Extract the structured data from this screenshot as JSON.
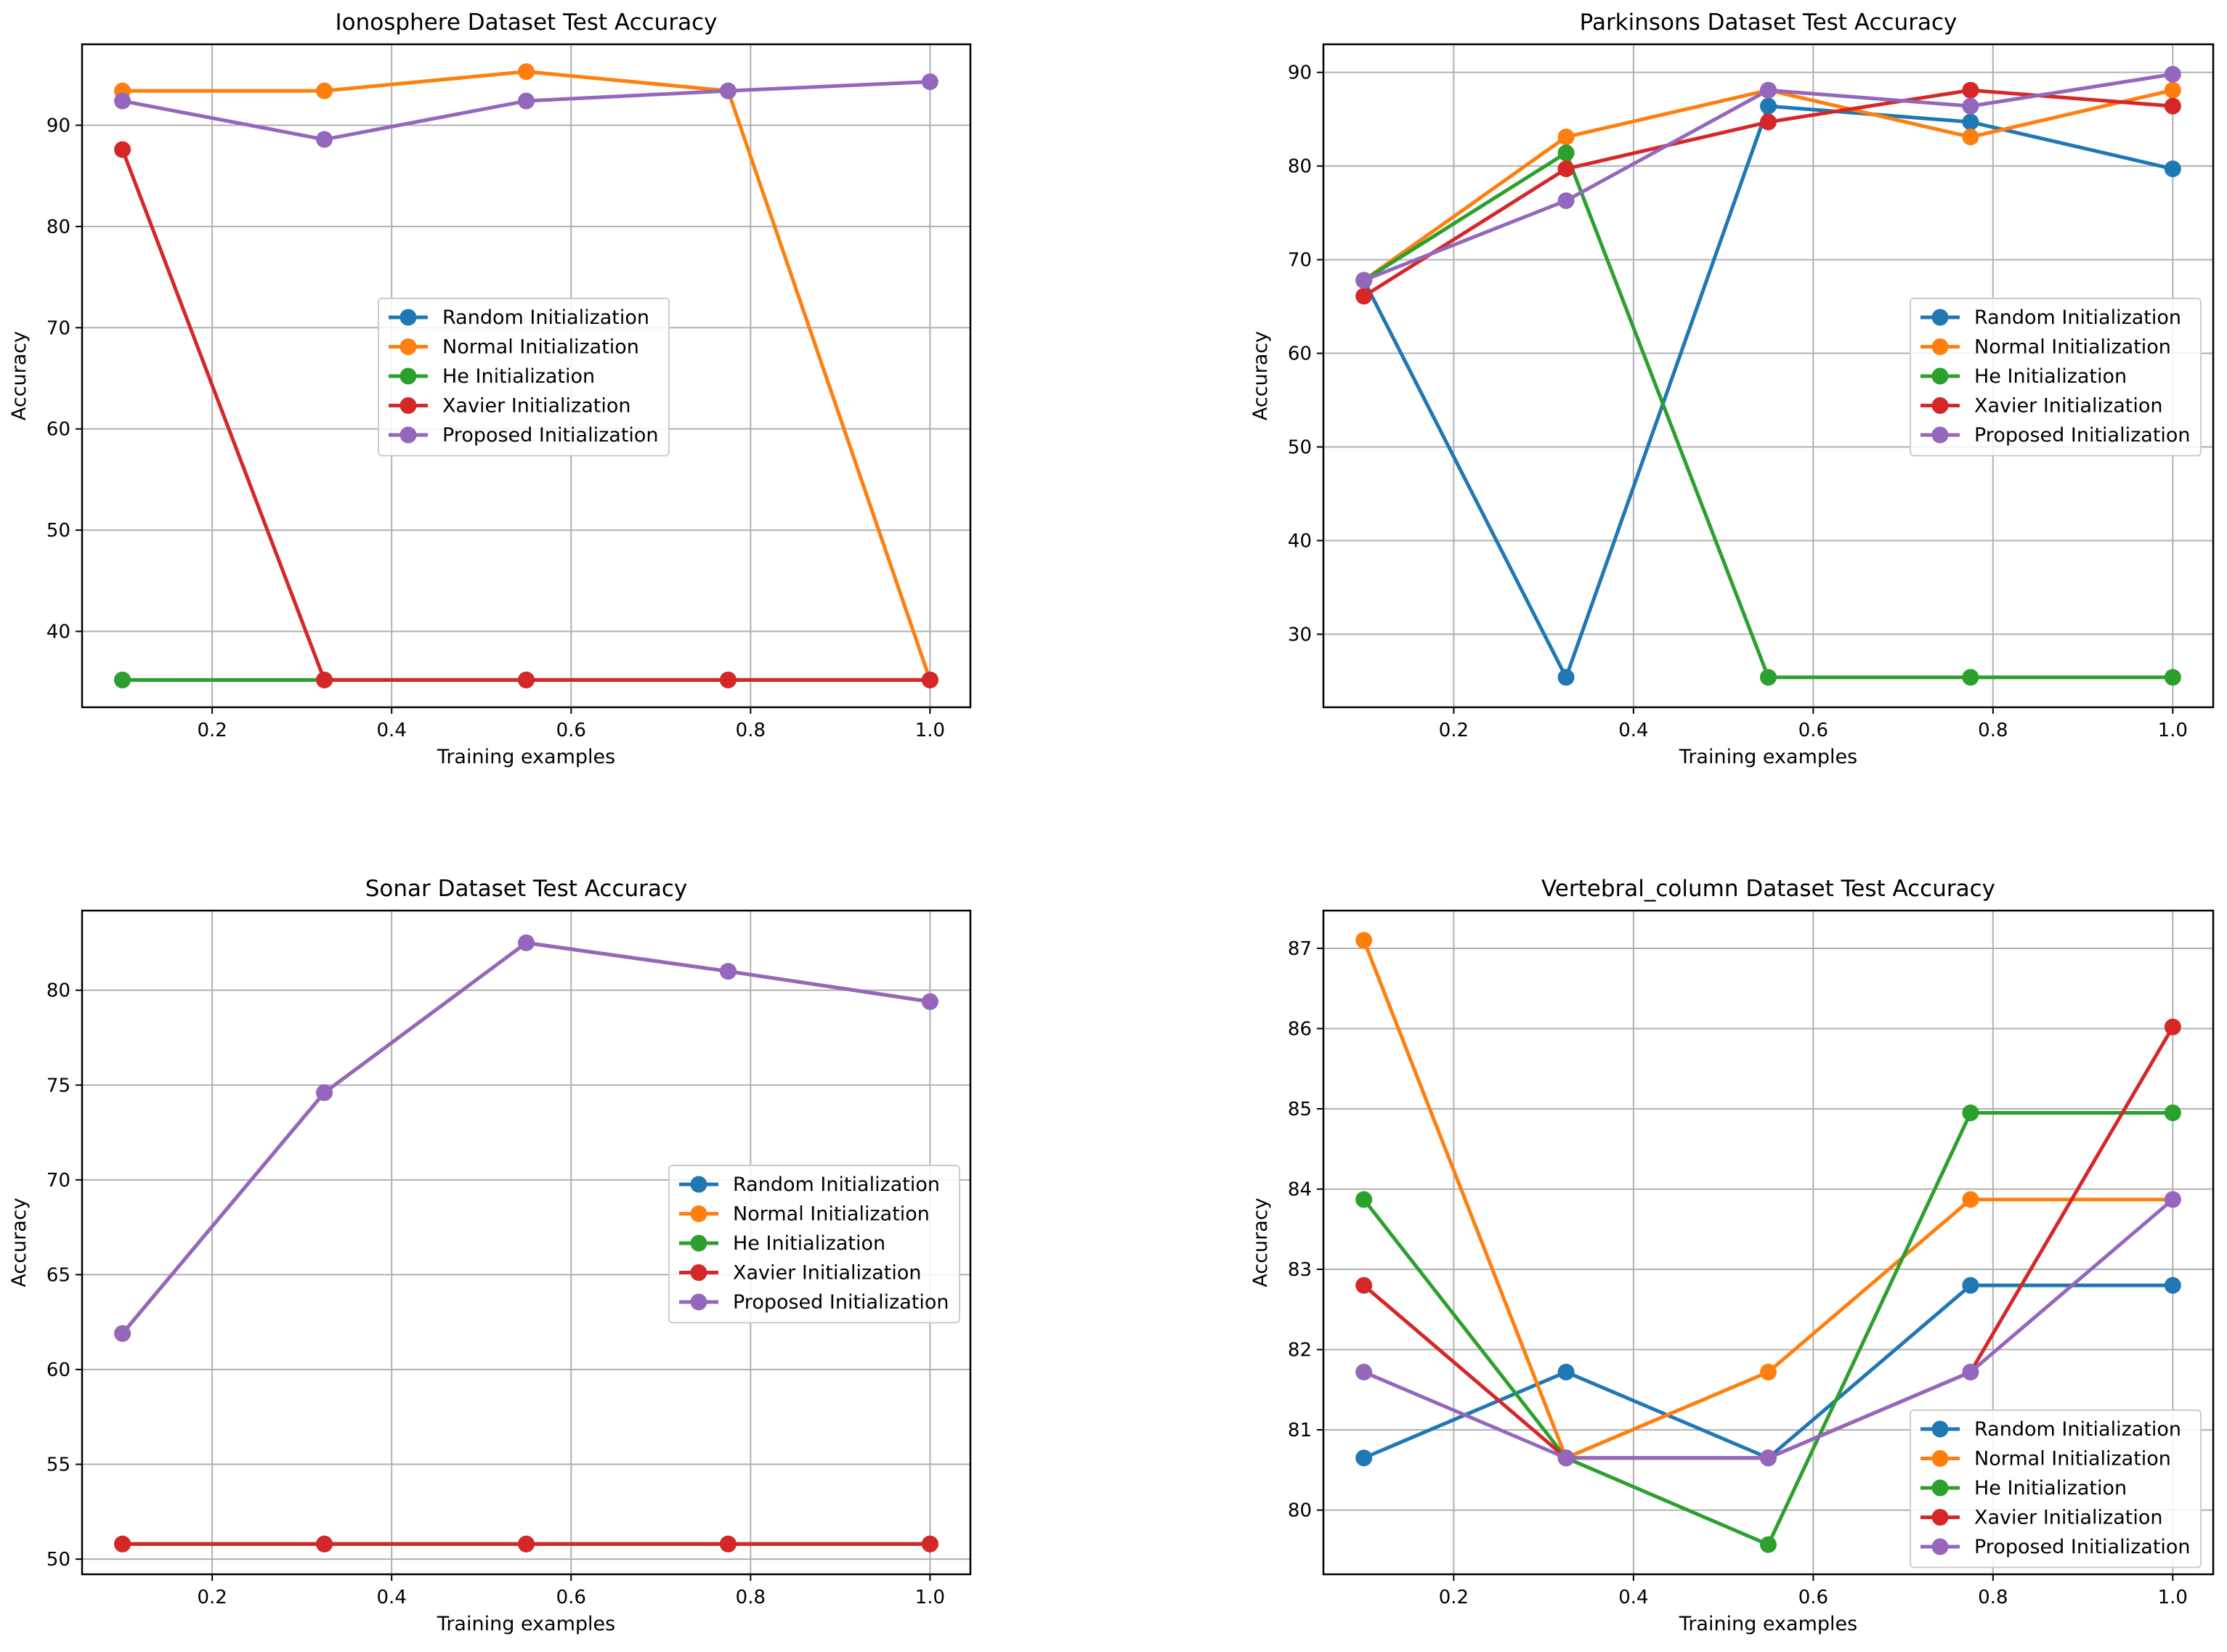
{
  "colors": {
    "random": "#1f77b4",
    "normal": "#ff7f0e",
    "he": "#2ca02c",
    "xavier": "#d62728",
    "proposed": "#9467bd",
    "grid": "#b0b0b0"
  },
  "chart_data": [
    {
      "type": "line",
      "title": "Ionosphere Dataset Test Accuracy",
      "xlabel": "Training examples",
      "ylabel": "Accuracy",
      "x": [
        0.1,
        0.325,
        0.55,
        0.775,
        1.0
      ],
      "xlim": [
        0.055,
        1.045
      ],
      "ylim": [
        32.5,
        98.0
      ],
      "xticks": [
        0.2,
        0.4,
        0.6,
        0.8,
        1.0
      ],
      "xtick_labels": [
        "0.2",
        "0.4",
        "0.6",
        "0.8",
        "1.0"
      ],
      "yticks": [
        40,
        50,
        60,
        70,
        80,
        90
      ],
      "ytick_labels": [
        "40",
        "50",
        "60",
        "70",
        "80",
        "90"
      ],
      "grid": true,
      "legend_position": "center",
      "series": [
        {
          "name": "Random Initialization",
          "color_key": "random",
          "values": [
            35.2,
            35.2,
            35.2,
            35.2,
            35.2
          ]
        },
        {
          "name": "Normal Initialization",
          "color_key": "normal",
          "values": [
            93.4,
            93.4,
            95.3,
            93.4,
            35.2
          ]
        },
        {
          "name": "He Initialization",
          "color_key": "he",
          "values": [
            35.2,
            35.2,
            35.2,
            35.2,
            35.2
          ]
        },
        {
          "name": "Xavier Initialization",
          "color_key": "xavier",
          "values": [
            87.6,
            35.2,
            35.2,
            35.2,
            35.2
          ]
        },
        {
          "name": "Proposed Initialization",
          "color_key": "proposed",
          "values": [
            92.4,
            88.6,
            92.4,
            93.4,
            94.3
          ]
        }
      ]
    },
    {
      "type": "line",
      "title": "Parkinsons Dataset Test Accuracy",
      "xlabel": "Training examples",
      "ylabel": "Accuracy",
      "x": [
        0.1,
        0.325,
        0.55,
        0.775,
        1.0
      ],
      "xlim": [
        0.055,
        1.045
      ],
      "ylim": [
        22.2,
        93.0
      ],
      "xticks": [
        0.2,
        0.4,
        0.6,
        0.8,
        1.0
      ],
      "xtick_labels": [
        "0.2",
        "0.4",
        "0.6",
        "0.8",
        "1.0"
      ],
      "yticks": [
        30,
        40,
        50,
        60,
        70,
        80,
        90
      ],
      "ytick_labels": [
        "30",
        "40",
        "50",
        "60",
        "70",
        "80",
        "90"
      ],
      "grid": true,
      "legend_position": "center-right",
      "series": [
        {
          "name": "Random Initialization",
          "color_key": "random",
          "values": [
            67.8,
            25.4,
            86.4,
            84.7,
            79.7
          ]
        },
        {
          "name": "Normal Initialization",
          "color_key": "normal",
          "values": [
            67.8,
            83.1,
            88.1,
            83.1,
            88.1
          ]
        },
        {
          "name": "He Initialization",
          "color_key": "he",
          "values": [
            67.8,
            81.4,
            25.4,
            25.4,
            25.4
          ]
        },
        {
          "name": "Xavier Initialization",
          "color_key": "xavier",
          "values": [
            66.1,
            79.7,
            84.7,
            88.1,
            86.4
          ]
        },
        {
          "name": "Proposed Initialization",
          "color_key": "proposed",
          "values": [
            67.8,
            76.3,
            88.1,
            86.4,
            89.8
          ]
        }
      ]
    },
    {
      "type": "line",
      "title": "Sonar Dataset Test Accuracy",
      "xlabel": "Training examples",
      "ylabel": "Accuracy",
      "x": [
        0.1,
        0.325,
        0.55,
        0.775,
        1.0
      ],
      "xlim": [
        0.055,
        1.045
      ],
      "ylim": [
        49.2,
        84.2
      ],
      "xticks": [
        0.2,
        0.4,
        0.6,
        0.8,
        1.0
      ],
      "xtick_labels": [
        "0.2",
        "0.4",
        "0.6",
        "0.8",
        "1.0"
      ],
      "yticks": [
        50,
        55,
        60,
        65,
        70,
        75,
        80
      ],
      "ytick_labels": [
        "50",
        "55",
        "60",
        "65",
        "70",
        "75",
        "80"
      ],
      "grid": true,
      "legend_position": "center-right",
      "series": [
        {
          "name": "Random Initialization",
          "color_key": "random",
          "values": [
            50.8,
            50.8,
            50.8,
            50.8,
            50.8
          ]
        },
        {
          "name": "Normal Initialization",
          "color_key": "normal",
          "values": [
            61.9,
            74.6,
            82.5,
            81.0,
            79.4
          ]
        },
        {
          "name": "He Initialization",
          "color_key": "he",
          "values": [
            50.8,
            50.8,
            50.8,
            50.8,
            50.8
          ]
        },
        {
          "name": "Xavier Initialization",
          "color_key": "xavier",
          "values": [
            50.8,
            50.8,
            50.8,
            50.8,
            50.8
          ]
        },
        {
          "name": "Proposed Initialization",
          "color_key": "proposed",
          "values": [
            61.9,
            74.6,
            82.5,
            81.0,
            79.4
          ]
        }
      ]
    },
    {
      "type": "line",
      "title": "Vertebral_column Dataset Test Accuracy",
      "xlabel": "Training examples",
      "ylabel": "Accuracy",
      "x": [
        0.1,
        0.325,
        0.55,
        0.775,
        1.0
      ],
      "xlim": [
        0.055,
        1.045
      ],
      "ylim": [
        79.2,
        87.47
      ],
      "xticks": [
        0.2,
        0.4,
        0.6,
        0.8,
        1.0
      ],
      "xtick_labels": [
        "0.2",
        "0.4",
        "0.6",
        "0.8",
        "1.0"
      ],
      "yticks": [
        80,
        81,
        82,
        83,
        84,
        85,
        86,
        87
      ],
      "ytick_labels": [
        "80",
        "81",
        "82",
        "83",
        "84",
        "85",
        "86",
        "87"
      ],
      "grid": true,
      "legend_position": "lower-right",
      "series": [
        {
          "name": "Random Initialization",
          "color_key": "random",
          "values": [
            80.65,
            81.72,
            80.65,
            82.8,
            82.8
          ]
        },
        {
          "name": "Normal Initialization",
          "color_key": "normal",
          "values": [
            87.1,
            80.65,
            81.72,
            83.87,
            83.87
          ]
        },
        {
          "name": "He Initialization",
          "color_key": "he",
          "values": [
            83.87,
            80.65,
            79.57,
            84.95,
            84.95
          ]
        },
        {
          "name": "Xavier Initialization",
          "color_key": "xavier",
          "values": [
            82.8,
            80.65,
            80.65,
            81.72,
            86.02
          ]
        },
        {
          "name": "Proposed Initialization",
          "color_key": "proposed",
          "values": [
            81.72,
            80.65,
            80.65,
            81.72,
            83.87
          ]
        }
      ]
    }
  ]
}
